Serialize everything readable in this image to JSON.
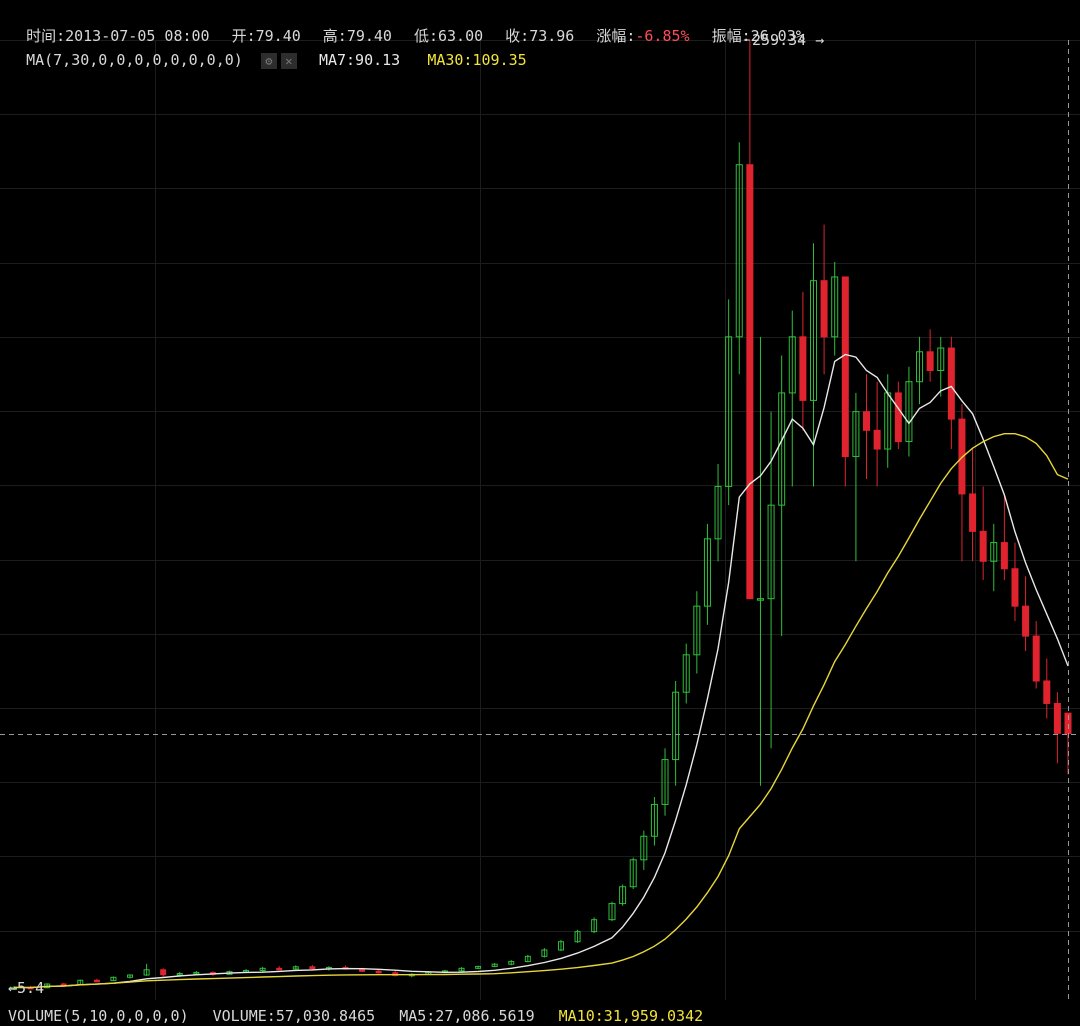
{
  "header": {
    "time_label": "时间:",
    "time_value": "2013-07-05 08:00",
    "open_label": "开:",
    "open_value": "79.40",
    "high_label": "高:",
    "high_value": "79.40",
    "low_label": "低:",
    "low_value": "63.00",
    "close_label": "收:",
    "close_value": "73.96",
    "change_label": "涨幅:",
    "change_value": "-6.85%",
    "amplitude_label": "振幅:",
    "amplitude_value": "26.03%"
  },
  "indicator": {
    "ma_params": "MA(7,30,0,0,0,0,0,0,0,0)",
    "settings_icon": "gear-icon",
    "close_icon": "close-icon",
    "ma7_text": "MA7:90.13",
    "ma30_text": "MA30:109.35"
  },
  "volume": {
    "params": "VOLUME(5,10,0,0,0,0)",
    "volume_text": "VOLUME:57,030.8465",
    "ma5_text": "MA5:27,086.5619",
    "ma10_text": "MA10:31,959.0342"
  },
  "colors": {
    "background": "#000000",
    "grid": "#1c1c1c",
    "up": "#2fbf3a",
    "down": "#e0242f",
    "ma7": "#e8e8e8",
    "ma30": "#e7d63a",
    "crosshair": "#9a9a9a",
    "negative_text": "#ff4d5a"
  },
  "chart_data": {
    "type": "candlestick",
    "title": "",
    "xlabel": "",
    "ylabel": "",
    "ylim": [
      5.4,
      259.34
    ],
    "grid": true,
    "max_marker": {
      "label": "259.34",
      "value": 259.34
    },
    "min_marker": {
      "label": "5.4",
      "value": 5.4
    },
    "crosshair_value": 73.96,
    "ma_periods": [
      7,
      30
    ],
    "candles": []
  }
}
